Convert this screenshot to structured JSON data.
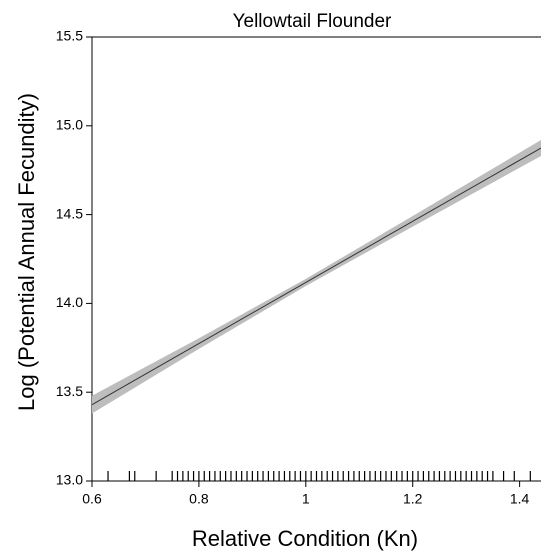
{
  "chart_data": {
    "type": "line-band",
    "title": "Yellowtail Flounder",
    "x_label": "Relative Condition (Kn)",
    "y_label": "Log (Potential Annual Fecundity)",
    "x": [
      0.6,
      0.8,
      1.0,
      1.2,
      1.44
    ],
    "values": [
      13.43,
      13.774,
      14.118,
      14.462,
      14.875
    ],
    "lower": [
      13.38,
      13.744,
      14.098,
      14.432,
      14.83
    ],
    "upper": [
      13.48,
      13.804,
      14.138,
      14.492,
      14.92
    ],
    "line_color": "#333333",
    "band_color": "#bdbdbd",
    "rug": [
      0.63,
      0.67,
      0.68,
      0.72,
      0.75,
      0.76,
      0.77,
      0.78,
      0.79,
      0.8,
      0.81,
      0.82,
      0.83,
      0.84,
      0.85,
      0.86,
      0.87,
      0.88,
      0.89,
      0.9,
      0.91,
      0.92,
      0.93,
      0.94,
      0.95,
      0.96,
      0.97,
      0.98,
      0.99,
      1.0,
      1.01,
      1.02,
      1.03,
      1.04,
      1.05,
      1.06,
      1.07,
      1.08,
      1.09,
      1.1,
      1.11,
      1.12,
      1.13,
      1.14,
      1.15,
      1.16,
      1.17,
      1.18,
      1.19,
      1.2,
      1.21,
      1.22,
      1.23,
      1.24,
      1.25,
      1.26,
      1.27,
      1.28,
      1.29,
      1.3,
      1.31,
      1.32,
      1.33,
      1.34,
      1.35,
      1.37,
      1.39,
      1.42
    ],
    "xlim": [
      0.6,
      1.44
    ],
    "ylim": [
      13.0,
      15.5
    ],
    "xticks": [
      0.6,
      0.8,
      1.0,
      1.2,
      1.4
    ],
    "yticks": [
      {
        "value": 13.0,
        "label": "13.0"
      },
      13.5,
      {
        "value": 14.0,
        "label": "14.0"
      },
      14.5,
      {
        "value": 15.0,
        "label": "15.0"
      },
      15.5
    ]
  }
}
